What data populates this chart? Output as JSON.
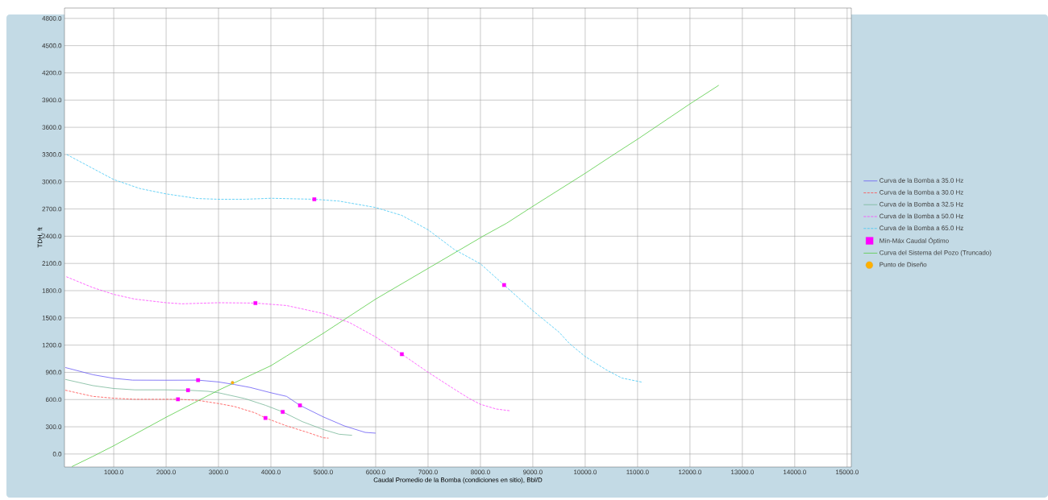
{
  "chart_data": {
    "type": "line",
    "xlabel": "Caudal Promedio de la Bomba (condiciones en sitio), Bbl/D",
    "ylabel": "TDH, ft",
    "xlim": [
      60,
      15080
    ],
    "ylim": [
      -143,
      4914
    ],
    "xticks": [
      {
        "value": 1000,
        "label": "1000.0"
      },
      {
        "value": 2000,
        "label": "2000.0"
      },
      {
        "value": 3000,
        "label": "3000.0"
      },
      {
        "value": 4000,
        "label": "4000.0"
      },
      {
        "value": 5000,
        "label": "5000.0"
      },
      {
        "value": 6000,
        "label": "6000.0"
      },
      {
        "value": 7000,
        "label": "7000.0"
      },
      {
        "value": 8000,
        "label": "8000.0"
      },
      {
        "value": 9000,
        "label": "9000.0"
      },
      {
        "value": 10000,
        "label": "10000.0"
      },
      {
        "value": 11000,
        "label": "11000.0"
      },
      {
        "value": 12000,
        "label": "12000.0"
      },
      {
        "value": 13000,
        "label": "13000.0"
      },
      {
        "value": 14000,
        "label": "14000.0"
      },
      {
        "value": 15000,
        "label": "15000.0"
      }
    ],
    "yticks": [
      {
        "value": 0,
        "label": "0.0"
      },
      {
        "value": 300,
        "label": "300.0"
      },
      {
        "value": 600,
        "label": "600.0"
      },
      {
        "value": 900,
        "label": "900.0"
      },
      {
        "value": 1200,
        "label": "1200.0"
      },
      {
        "value": 1500,
        "label": "1500.0"
      },
      {
        "value": 1800,
        "label": "1800.0"
      },
      {
        "value": 2100,
        "label": "2100.0"
      },
      {
        "value": 2400,
        "label": "2400.0"
      },
      {
        "value": 2700,
        "label": "2700.0"
      },
      {
        "value": 3000,
        "label": "3000.0"
      },
      {
        "value": 3300,
        "label": "3300.0"
      },
      {
        "value": 3600,
        "label": "3600.0"
      },
      {
        "value": 3900,
        "label": "3900.0"
      },
      {
        "value": 4200,
        "label": "4200.0"
      },
      {
        "value": 4500,
        "label": "4500.0"
      },
      {
        "value": 4800,
        "label": "4800.0"
      }
    ],
    "grid": true,
    "legend": "right",
    "series": [
      {
        "name": "Curva de la Bomba a 35.0 Hz",
        "color": "#6a5cf5",
        "line_style": "solid",
        "x": [
          75,
          610,
          1000,
          1360,
          2000,
          2610,
          3000,
          3300,
          3600,
          4000,
          4300,
          4555,
          5000,
          5400,
          5800,
          6000
        ],
        "values": [
          953,
          873,
          834,
          814,
          813,
          814,
          794,
          766,
          734,
          675,
          635,
          536,
          409,
          310,
          238,
          230
        ]
      },
      {
        "name": "Curva de la Bomba a 30.0 Hz",
        "color": "#ff4d4d",
        "line_style": "dashed",
        "x": [
          75,
          600,
          1000,
          1400,
          2000,
          2226,
          2600,
          3000,
          3300,
          3700,
          3897,
          4300,
          4700,
          5000,
          5100
        ],
        "values": [
          703,
          635,
          615,
          603,
          603,
          603,
          592,
          556,
          524,
          453,
          397,
          310,
          238,
          179,
          175
        ]
      },
      {
        "name": "Curva de la Bomba a 32.5 Hz",
        "color": "#79b899",
        "line_style": "solid",
        "x": [
          75,
          600,
          1000,
          1400,
          2000,
          2418,
          2800,
          3000,
          3500,
          3900,
          4226,
          4600,
          5000,
          5300,
          5550
        ],
        "values": [
          822,
          754,
          722,
          707,
          707,
          703,
          691,
          675,
          611,
          536,
          464,
          357,
          270,
          218,
          206
        ]
      },
      {
        "name": "Curva de la Bomba a 50.0 Hz",
        "color": "#ff44ff",
        "line_style": "dashed",
        "x": [
          96,
          600,
          1000,
          1400,
          2000,
          2300,
          3000,
          3705,
          4300,
          5000,
          5500,
          6000,
          6500,
          7000,
          7500,
          7800,
          8000,
          8300,
          8570
        ],
        "values": [
          1953,
          1834,
          1759,
          1707,
          1667,
          1655,
          1667,
          1663,
          1636,
          1548,
          1449,
          1290,
          1100,
          901,
          715,
          607,
          548,
          496,
          476
        ]
      },
      {
        "name": "Curva de la Bomba a 65.0 Hz",
        "color": "#44c8f5",
        "line_style": "dashed",
        "x": [
          103,
          1000,
          1500,
          2000,
          2600,
          3000,
          3500,
          4000,
          4829,
          5300,
          6000,
          6500,
          7000,
          7500,
          8000,
          8452,
          9000,
          9500,
          9700,
          10000,
          10400,
          10700,
          11100
        ],
        "values": [
          3300,
          3024,
          2925,
          2866,
          2815,
          2807,
          2807,
          2818,
          2807,
          2787,
          2716,
          2629,
          2471,
          2254,
          2096,
          1862,
          1580,
          1343,
          1217,
          1074,
          928,
          837,
          790
        ]
      },
      {
        "name": "Mín-Máx Caudal Óptimo",
        "type": "scatter",
        "color": "#ff00ff",
        "marker": "square",
        "x": [
          2610,
          4555,
          2226,
          3897,
          2418,
          4226,
          3705,
          6500,
          4829,
          8452
        ],
        "values": [
          814,
          536,
          603,
          397,
          703,
          464,
          1663,
          1100,
          2807,
          1862
        ]
      },
      {
        "name": "Curva del Sistema del Pozo (Truncado)",
        "color": "#55cc44",
        "line_style": "solid",
        "x": [
          200,
          596,
          1000,
          2000,
          3000,
          4000,
          4300,
          5000,
          6000,
          7000,
          8062,
          8500,
          9000,
          10000,
          10500,
          11000,
          12000,
          12550
        ],
        "values": [
          -139,
          -28,
          91,
          405,
          703,
          973,
          1080,
          1330,
          1707,
          2045,
          2404,
          2543,
          2729,
          3093,
          3283,
          3469,
          3858,
          4063
        ]
      },
      {
        "name": "Punto de Diseño",
        "type": "scatter",
        "color": "#ffb000",
        "marker": "circle",
        "x": [
          3267
        ],
        "values": [
          786
        ]
      }
    ]
  }
}
